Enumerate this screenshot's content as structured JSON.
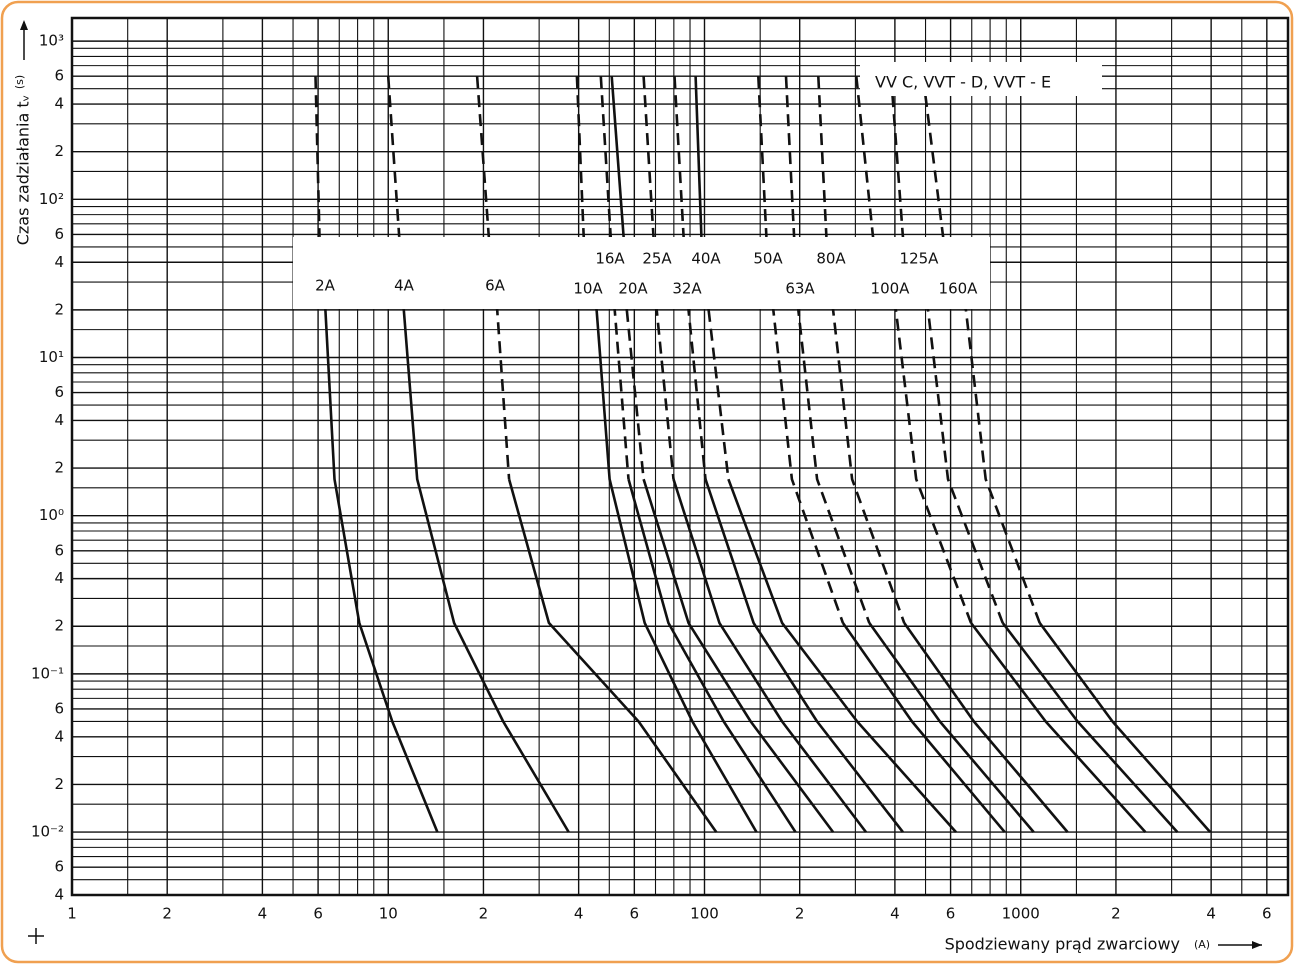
{
  "chart_data": {
    "type": "line",
    "annotation": "VV C, VVT - D, VVT - E",
    "xlabel": "Spodziewany prąd zwarciowy",
    "xunit": "(A)",
    "ylabel": "Czas zadziałania  tᵥ",
    "yunit": "(s)",
    "xscale": "log",
    "yscale": "log",
    "grid": true,
    "minor_grid": true,
    "xlim": [
      1,
      7000
    ],
    "ylim": [
      0.004,
      1400
    ],
    "xticks": [
      1,
      2,
      4,
      6,
      10,
      {
        "value": 20,
        "label": "2"
      },
      {
        "value": 40,
        "label": "4"
      },
      {
        "value": 60,
        "label": "6"
      },
      100,
      {
        "value": 200,
        "label": "2"
      },
      {
        "value": 400,
        "label": "4"
      },
      {
        "value": 600,
        "label": "6"
      },
      1000,
      {
        "value": 2000,
        "label": "2"
      },
      {
        "value": 4000,
        "label": "4"
      },
      {
        "value": 6000,
        "label": "6"
      }
    ],
    "yticks": [
      {
        "value": 1000,
        "label": "10³"
      },
      {
        "value": 600,
        "label": "6"
      },
      {
        "value": 400,
        "label": "4"
      },
      {
        "value": 200,
        "label": "2"
      },
      {
        "value": 100,
        "label": "10²"
      },
      {
        "value": 60,
        "label": "6"
      },
      {
        "value": 40,
        "label": "4"
      },
      {
        "value": 20,
        "label": "2"
      },
      {
        "value": 10,
        "label": "10¹"
      },
      6,
      4,
      2,
      {
        "value": 1,
        "label": "10⁰"
      },
      {
        "value": 0.6,
        "label": "6"
      },
      {
        "value": 0.4,
        "label": "4"
      },
      {
        "value": 0.2,
        "label": "2"
      },
      {
        "value": 0.1,
        "label": "10⁻¹"
      },
      {
        "value": 0.06,
        "label": "6"
      },
      {
        "value": 0.04,
        "label": "4"
      },
      {
        "value": 0.02,
        "label": "2"
      },
      {
        "value": 0.01,
        "label": "10⁻²"
      },
      {
        "value": 0.006,
        "label": "6"
      },
      {
        "value": 0.004,
        "label": "4"
      }
    ],
    "series": [
      {
        "name": "2A",
        "color": "#111111",
        "x": [
          5.89,
          6.06,
          6.33,
          6.76,
          8.1,
          10.3,
          14.3
        ],
        "values": [
          600,
          58,
          20,
          1.7,
          0.21,
          0.05,
          0.01
        ],
        "dashed": [
          true,
          false,
          false,
          false,
          false,
          false
        ]
      },
      {
        "name": "4A",
        "color": "#111111",
        "x": [
          10.0,
          10.83,
          11.2,
          12.35,
          16.15,
          23.1,
          37.2
        ],
        "values": [
          600,
          58,
          20,
          1.7,
          0.21,
          0.05,
          0.01
        ],
        "dashed": [
          true,
          false,
          false,
          false,
          false,
          false
        ]
      },
      {
        "name": "6A",
        "color": "#111111",
        "x": [
          19.1,
          20.8,
          22.1,
          24.1,
          32.2,
          61.9,
          109
        ],
        "values": [
          600,
          58,
          20,
          1.7,
          0.21,
          0.05,
          0.01
        ],
        "dashed": [
          true,
          true,
          true,
          false,
          false,
          false
        ]
      },
      {
        "name": "10A",
        "color": "#111111",
        "x": [
          39.5,
          41.5,
          45.6,
          50.1,
          64.7,
          91.6,
          146
        ],
        "values": [
          600,
          58,
          20,
          1.7,
          0.21,
          0.05,
          0.01
        ],
        "dashed": [
          true,
          true,
          false,
          false,
          false,
          false
        ]
      },
      {
        "name": "16A",
        "color": "#111111",
        "x": [
          47.0,
          50.5,
          52.0,
          57.5,
          76.9,
          115,
          194
        ],
        "values": [
          600,
          58,
          20,
          1.7,
          0.21,
          0.05,
          0.01
        ],
        "dashed": [
          true,
          true,
          true,
          false,
          false,
          false
        ]
      },
      {
        "name": "20A",
        "color": "#111111",
        "x": [
          50.9,
          55.5,
          56.8,
          64.2,
          89.0,
          140,
          255
        ],
        "values": [
          600,
          58,
          20,
          1.7,
          0.21,
          0.05,
          0.01
        ],
        "dashed": [
          false,
          false,
          true,
          false,
          false,
          false
        ]
      },
      {
        "name": "25A",
        "color": "#111111",
        "x": [
          64.2,
          69.0,
          70.6,
          79.8,
          111.5,
          176,
          324
        ],
        "values": [
          600,
          58,
          20,
          1.7,
          0.21,
          0.05,
          0.01
        ],
        "dashed": [
          true,
          true,
          true,
          false,
          false,
          false
        ]
      },
      {
        "name": "32A",
        "color": "#111111",
        "x": [
          80.4,
          85.9,
          89.0,
          100.7,
          143,
          227,
          424
        ],
        "values": [
          600,
          58,
          20,
          1.7,
          0.21,
          0.05,
          0.01
        ],
        "dashed": [
          true,
          true,
          true,
          false,
          false,
          false
        ]
      },
      {
        "name": "40A",
        "color": "#111111",
        "x": [
          93.7,
          97.8,
          103,
          119,
          176,
          304,
          624
        ],
        "values": [
          600,
          58,
          20,
          1.7,
          0.21,
          0.05,
          0.01
        ],
        "dashed": [
          false,
          false,
          true,
          false,
          false,
          false
        ]
      },
      {
        "name": "50A",
        "color": "#111111",
        "x": [
          148,
          157,
          165,
          189,
          274,
          453,
          890
        ],
        "values": [
          600,
          58,
          20,
          1.7,
          0.21,
          0.05,
          0.01
        ],
        "dashed": [
          true,
          true,
          true,
          true,
          false,
          false
        ]
      },
      {
        "name": "63A",
        "color": "#111111",
        "x": [
          181,
          192,
          198,
          227,
          332,
          555,
          1099
        ],
        "values": [
          600,
          58,
          20,
          1.7,
          0.21,
          0.05,
          0.01
        ],
        "dashed": [
          true,
          true,
          true,
          true,
          false,
          false
        ]
      },
      {
        "name": "80A",
        "color": "#111111",
        "x": [
          229,
          243,
          255,
          293,
          428,
          711,
          1407
        ],
        "values": [
          600,
          58,
          20,
          1.7,
          0.21,
          0.05,
          0.01
        ],
        "dashed": [
          true,
          true,
          true,
          true,
          false,
          false
        ]
      },
      {
        "name": "100A",
        "color": "#111111",
        "x": [
          302,
          341,
          403,
          467,
          696,
          1199,
          2479
        ],
        "values": [
          600,
          58,
          20,
          1.7,
          0.21,
          0.05,
          0.01
        ],
        "dashed": [
          true,
          true,
          true,
          true,
          false,
          false
        ]
      },
      {
        "name": "125A",
        "color": "#111111",
        "x": [
          389,
          424,
          509,
          589,
          877,
          1513,
          3128
        ],
        "values": [
          600,
          58,
          20,
          1.7,
          0.21,
          0.05,
          0.01
        ],
        "dashed": [
          true,
          true,
          true,
          true,
          false,
          false
        ]
      },
      {
        "name": "160A",
        "color": "#111111",
        "x": [
          491,
          568,
          671,
          775,
          1148,
          1950,
          3973
        ],
        "values": [
          600,
          58,
          20,
          1.7,
          0.21,
          0.05,
          0.01
        ],
        "dashed": [
          true,
          true,
          true,
          true,
          false,
          false
        ]
      }
    ]
  }
}
